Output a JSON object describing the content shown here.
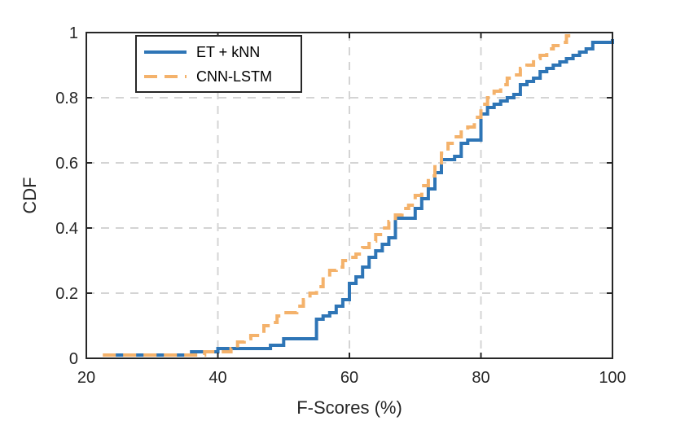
{
  "chart_data": {
    "type": "line",
    "xlabel": "F-Scores (%)",
    "ylabel": "CDF",
    "xlim": [
      20,
      100
    ],
    "ylim": [
      0,
      1
    ],
    "xticks": [
      "20",
      "40",
      "60",
      "80",
      "100"
    ],
    "yticks": [
      "0",
      "0.2",
      "0.4",
      "0.6",
      "0.8",
      "1"
    ],
    "grid": true,
    "legend_position": "top-left",
    "series": [
      {
        "name": "ET + kNN",
        "color": "#2e75b6",
        "style": "solid",
        "x": [
          23,
          35,
          36,
          40,
          47,
          48,
          50,
          55,
          56,
          57,
          58,
          59,
          60,
          61,
          62,
          63,
          64,
          65,
          66,
          67,
          70,
          71,
          72,
          73,
          74,
          76,
          77,
          78,
          80,
          81,
          82,
          83,
          84,
          85,
          86,
          87,
          88,
          89,
          90,
          91,
          92,
          93,
          94,
          95,
          96,
          97,
          100
        ],
        "y": [
          0.01,
          0.01,
          0.02,
          0.03,
          0.03,
          0.04,
          0.06,
          0.12,
          0.13,
          0.14,
          0.16,
          0.18,
          0.23,
          0.25,
          0.28,
          0.31,
          0.33,
          0.35,
          0.37,
          0.43,
          0.46,
          0.49,
          0.52,
          0.57,
          0.61,
          0.62,
          0.66,
          0.67,
          0.75,
          0.77,
          0.78,
          0.79,
          0.8,
          0.81,
          0.84,
          0.85,
          0.86,
          0.88,
          0.89,
          0.9,
          0.91,
          0.92,
          0.93,
          0.94,
          0.95,
          0.97,
          0.98
        ]
      },
      {
        "name": "CNN-LSTM",
        "color": "#f4b26b",
        "style": "dashed",
        "x": [
          22.5,
          35,
          38,
          42,
          43,
          44,
          45,
          47,
          48,
          49,
          50,
          52,
          53,
          54,
          55,
          56,
          57,
          58,
          59,
          60,
          61,
          62,
          63,
          64,
          65,
          66,
          67,
          68,
          69,
          70,
          71,
          72,
          73,
          74,
          75,
          76,
          77,
          78,
          79,
          80,
          81,
          82,
          83,
          84,
          85,
          86,
          87,
          88,
          89,
          90,
          91,
          92,
          93,
          94
        ],
        "y": [
          0.01,
          0.01,
          0.02,
          0.03,
          0.05,
          0.06,
          0.07,
          0.1,
          0.11,
          0.13,
          0.14,
          0.16,
          0.18,
          0.2,
          0.22,
          0.25,
          0.27,
          0.28,
          0.3,
          0.31,
          0.32,
          0.34,
          0.36,
          0.38,
          0.4,
          0.42,
          0.44,
          0.46,
          0.47,
          0.5,
          0.53,
          0.56,
          0.6,
          0.63,
          0.66,
          0.68,
          0.7,
          0.71,
          0.74,
          0.78,
          0.8,
          0.82,
          0.84,
          0.86,
          0.87,
          0.89,
          0.9,
          0.92,
          0.93,
          0.95,
          0.96,
          0.97,
          0.99,
          1.0
        ]
      }
    ]
  }
}
